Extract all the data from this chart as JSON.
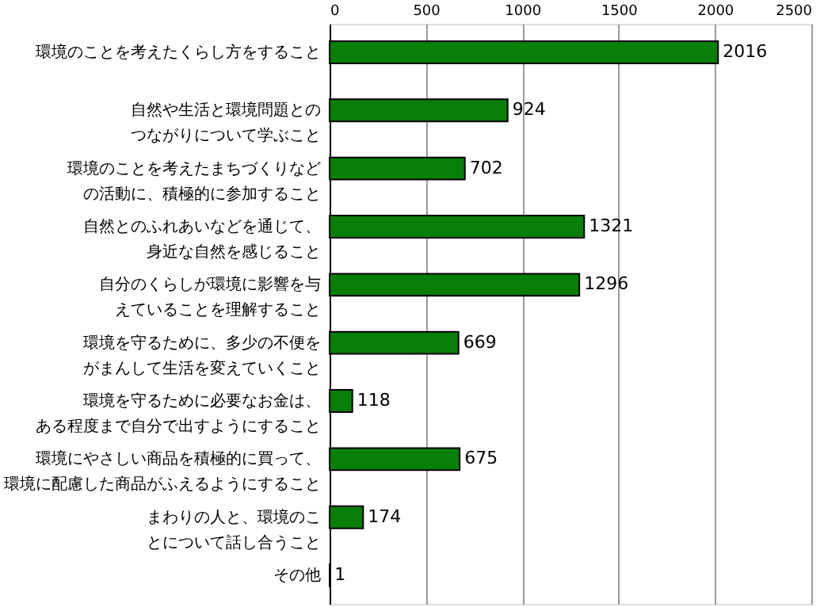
{
  "chart_data": {
    "type": "bar",
    "orientation": "horizontal",
    "categories": [
      "環境のことを考えたくらし方をすること",
      "自然や生活と環境問題とのつながりについて学ぶこと",
      "環境のことを考えたまちづくりなどの活動に、積極的に参加すること",
      "自然とのふれあいなどを通じて、身近な自然を感じること",
      "自分のくらしが環境に影響を与えていることを理解すること",
      "環境を守るために、多少の不便をがまんして生活を変えていくこと",
      "環境を守るために必要なお金は、ある程度まで自分で出すようにすること",
      "環境にやさしい商品を積極的に買って、環境に配慮した商品がふえるようにすること",
      "まわりの人と、環境のことについて話し合うこと",
      "その他"
    ],
    "values": [
      2016,
      924,
      702,
      1321,
      1296,
      669,
      118,
      675,
      174,
      1
    ],
    "color": "#087f08",
    "xlim": [
      0,
      2500
    ],
    "xticks": [
      0,
      500,
      1000,
      1500,
      2000,
      2500
    ],
    "grid": "x",
    "data_labels": true
  }
}
